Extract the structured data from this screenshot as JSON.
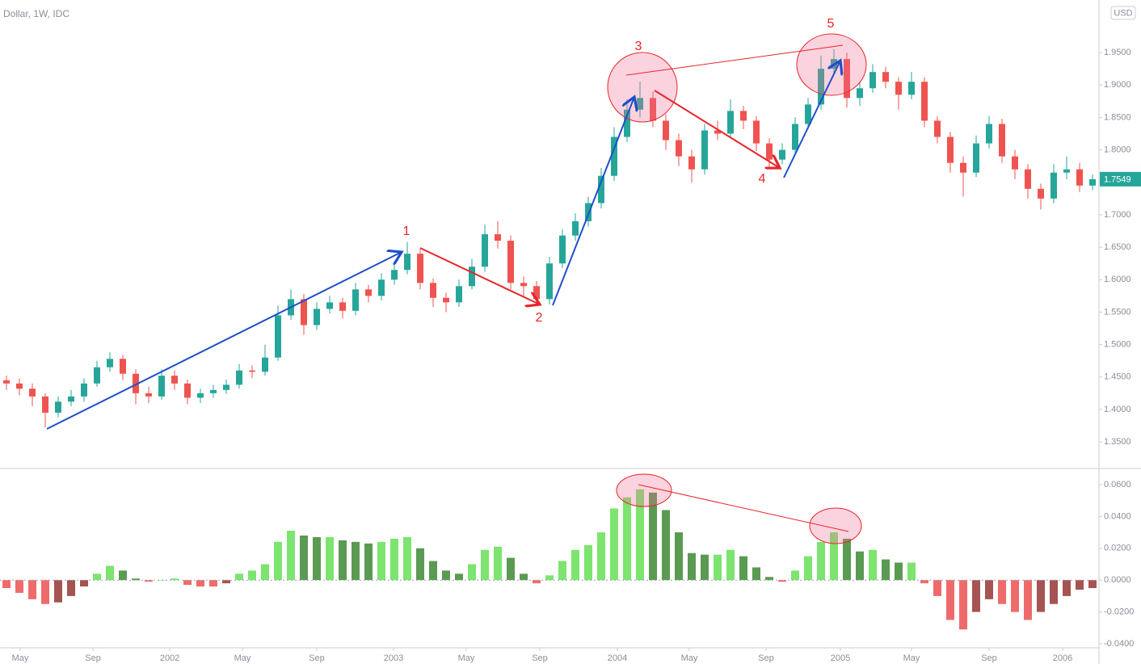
{
  "header": {
    "title": "Dollar, 1W, IDC",
    "currency": "USD"
  },
  "chart_data": [
    {
      "type": "candlestick",
      "colors": {
        "up": "#26a69a",
        "down": "#ef5350"
      },
      "open": [
        1.445,
        1.44,
        1.432,
        1.42,
        1.395,
        1.412,
        1.42,
        1.44,
        1.465,
        1.478,
        1.455,
        1.425,
        1.42,
        1.452,
        1.44,
        1.418,
        1.425,
        1.43,
        1.438,
        1.46,
        1.458,
        1.48,
        1.545,
        1.57,
        1.53,
        1.555,
        1.565,
        1.552,
        1.585,
        1.575,
        1.6,
        1.615,
        1.64,
        1.595,
        1.572,
        1.565,
        1.59,
        1.62,
        1.67,
        1.66,
        1.595,
        1.59,
        1.57,
        1.625,
        1.668,
        1.69,
        1.718,
        1.76,
        1.82,
        1.862,
        1.88,
        1.845,
        1.815,
        1.79,
        1.77,
        1.83,
        1.825,
        1.86,
        1.845,
        1.81,
        1.785,
        1.8,
        1.84,
        1.87,
        1.925,
        1.94,
        1.88,
        1.895,
        1.92,
        1.905,
        1.885,
        1.905,
        1.845,
        1.82,
        1.78,
        1.765,
        1.81,
        1.84,
        1.79,
        1.77,
        1.74,
        1.725,
        1.765,
        1.77,
        1.745
      ],
      "high": [
        1.452,
        1.448,
        1.44,
        1.425,
        1.42,
        1.43,
        1.448,
        1.475,
        1.488,
        1.484,
        1.462,
        1.435,
        1.462,
        1.46,
        1.446,
        1.432,
        1.438,
        1.446,
        1.47,
        1.468,
        1.5,
        1.56,
        1.585,
        1.578,
        1.565,
        1.575,
        1.572,
        1.595,
        1.592,
        1.61,
        1.628,
        1.658,
        1.648,
        1.602,
        1.58,
        1.6,
        1.632,
        1.685,
        1.69,
        1.668,
        1.605,
        1.598,
        1.635,
        1.678,
        1.702,
        1.728,
        1.772,
        1.835,
        1.878,
        1.905,
        1.89,
        1.855,
        1.825,
        1.8,
        1.84,
        1.845,
        1.878,
        1.868,
        1.852,
        1.818,
        1.81,
        1.85,
        1.88,
        1.945,
        1.955,
        1.95,
        1.905,
        1.932,
        1.928,
        1.912,
        1.92,
        1.912,
        1.852,
        1.828,
        1.79,
        1.822,
        1.852,
        1.848,
        1.8,
        1.778,
        1.748,
        1.778,
        1.79,
        1.78,
        1.762
      ],
      "low": [
        1.43,
        1.422,
        1.405,
        1.372,
        1.388,
        1.405,
        1.412,
        1.435,
        1.458,
        1.445,
        1.408,
        1.41,
        1.415,
        1.43,
        1.408,
        1.41,
        1.418,
        1.424,
        1.432,
        1.448,
        1.452,
        1.475,
        1.538,
        1.515,
        1.522,
        1.548,
        1.54,
        1.545,
        1.565,
        1.568,
        1.592,
        1.608,
        1.585,
        1.558,
        1.55,
        1.558,
        1.585,
        1.612,
        1.648,
        1.585,
        1.575,
        1.56,
        1.562,
        1.618,
        1.66,
        1.682,
        1.71,
        1.752,
        1.812,
        1.85,
        1.835,
        1.8,
        1.775,
        1.75,
        1.762,
        1.815,
        1.818,
        1.832,
        1.798,
        1.772,
        1.778,
        1.792,
        1.832,
        1.862,
        1.915,
        1.865,
        1.868,
        1.888,
        1.895,
        1.862,
        1.878,
        1.835,
        1.81,
        1.765,
        1.728,
        1.758,
        1.802,
        1.78,
        1.755,
        1.725,
        1.708,
        1.718,
        1.755,
        1.735,
        1.738
      ],
      "close": [
        1.44,
        1.432,
        1.42,
        1.395,
        1.412,
        1.42,
        1.44,
        1.465,
        1.478,
        1.455,
        1.425,
        1.42,
        1.452,
        1.44,
        1.418,
        1.425,
        1.43,
        1.438,
        1.46,
        1.458,
        1.48,
        1.545,
        1.57,
        1.53,
        1.555,
        1.565,
        1.552,
        1.585,
        1.575,
        1.6,
        1.615,
        1.64,
        1.595,
        1.572,
        1.565,
        1.59,
        1.62,
        1.67,
        1.66,
        1.595,
        1.59,
        1.57,
        1.625,
        1.668,
        1.69,
        1.718,
        1.76,
        1.82,
        1.862,
        1.88,
        1.845,
        1.815,
        1.79,
        1.77,
        1.83,
        1.825,
        1.86,
        1.845,
        1.81,
        1.785,
        1.8,
        1.84,
        1.87,
        1.925,
        1.94,
        1.88,
        1.895,
        1.92,
        1.905,
        1.885,
        1.905,
        1.845,
        1.82,
        1.78,
        1.765,
        1.81,
        1.84,
        1.79,
        1.77,
        1.74,
        1.725,
        1.765,
        1.77,
        1.745,
        1.7549
      ],
      "last_price": {
        "value": 1.7549,
        "label": "1.7549"
      },
      "ylim": [
        1.309,
        2.031
      ],
      "yticks": [
        {
          "value": 1.35,
          "label": "1.3500"
        },
        {
          "value": 1.4,
          "label": "1.4000"
        },
        {
          "value": 1.45,
          "label": "1.4500"
        },
        {
          "value": 1.5,
          "label": "1.5000"
        },
        {
          "value": 1.55,
          "label": "1.5500"
        },
        {
          "value": 1.6,
          "label": "1.6000"
        },
        {
          "value": 1.65,
          "label": "1.6500"
        },
        {
          "value": 1.7,
          "label": "1.7000"
        },
        {
          "value": 1.75,
          "label": "1.7500"
        },
        {
          "value": 1.8,
          "label": "1.8000"
        },
        {
          "value": 1.85,
          "label": "1.8500"
        },
        {
          "value": 1.9,
          "label": "1.9000"
        },
        {
          "value": 1.95,
          "label": "1.9500"
        }
      ],
      "annotations": [
        "1",
        "2",
        "3",
        "4",
        "5"
      ]
    },
    {
      "type": "histogram",
      "colors": {
        "pos_up": "#7ce46f",
        "pos_down": "#5b9a52",
        "neg_down": "#ef6b6b",
        "neg_up": "#a55353"
      },
      "values": [
        -0.005,
        -0.008,
        -0.012,
        -0.015,
        -0.014,
        -0.01,
        -0.004,
        0.004,
        0.009,
        0.006,
        0.001,
        -0.001,
        0,
        0.001,
        -0.003,
        -0.004,
        -0.004,
        -0.002,
        0.004,
        0.006,
        0.01,
        0.024,
        0.031,
        0.028,
        0.027,
        0.027,
        0.025,
        0.024,
        0.023,
        0.024,
        0.026,
        0.027,
        0.02,
        0.012,
        0.006,
        0.004,
        0.01,
        0.019,
        0.021,
        0.014,
        0.004,
        -0.002,
        0.003,
        0.012,
        0.019,
        0.022,
        0.03,
        0.045,
        0.052,
        0.057,
        0.055,
        0.044,
        0.03,
        0.017,
        0.016,
        0.016,
        0.019,
        0.015,
        0.008,
        0.002,
        -0.001,
        0.006,
        0.015,
        0.024,
        0.03,
        0.026,
        0.018,
        0.019,
        0.013,
        0.011,
        0.011,
        -0.002,
        -0.01,
        -0.025,
        -0.031,
        -0.02,
        -0.012,
        -0.015,
        -0.02,
        -0.025,
        -0.02,
        -0.015,
        -0.01,
        -0.006,
        -0.005
      ],
      "ylim": [
        -0.0415,
        0.0696
      ],
      "yticks": [
        {
          "value": 0.06,
          "label": "0.0600"
        },
        {
          "value": 0.04,
          "label": "0.0400"
        },
        {
          "value": 0.02,
          "label": "0.0200"
        },
        {
          "value": 0,
          "label": "0.0000"
        },
        {
          "value": -0.02,
          "label": "-0.0200"
        },
        {
          "value": -0.04,
          "label": "-0.0400"
        }
      ]
    }
  ],
  "xticks": [
    {
      "value": 1.06,
      "label": "May"
    },
    {
      "value": 6.69,
      "label": "Sep"
    },
    {
      "value": 12.63,
      "label": "2002"
    },
    {
      "value": 18.25,
      "label": "May"
    },
    {
      "value": 24,
      "label": "Sep"
    },
    {
      "value": 29.94,
      "label": "2003"
    },
    {
      "value": 35.56,
      "label": "May"
    },
    {
      "value": 41.25,
      "label": "Sep"
    },
    {
      "value": 47.25,
      "label": "2004"
    },
    {
      "value": 52.81,
      "label": "May"
    },
    {
      "value": 58.75,
      "label": "Sep"
    },
    {
      "value": 64.5,
      "label": "2005"
    },
    {
      "value": 70,
      "label": "May"
    },
    {
      "value": 76,
      "label": "Sep"
    },
    {
      "value": 81.69,
      "label": "2006"
    }
  ]
}
